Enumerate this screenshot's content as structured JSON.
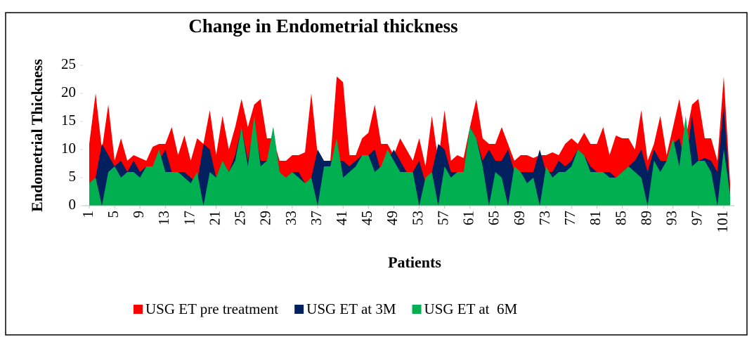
{
  "chart_data": {
    "type": "area",
    "title": "Change in Endometrial thickness",
    "y_label": "Endometrial Thickness",
    "x_label": "Patients",
    "x": [
      1,
      2,
      3,
      4,
      5,
      6,
      7,
      8,
      9,
      10,
      11,
      12,
      13,
      14,
      15,
      16,
      17,
      18,
      19,
      20,
      21,
      22,
      23,
      24,
      25,
      26,
      27,
      28,
      29,
      30,
      31,
      32,
      33,
      34,
      35,
      36,
      37,
      38,
      39,
      40,
      41,
      42,
      43,
      44,
      45,
      46,
      47,
      48,
      49,
      50,
      51,
      52,
      53,
      54,
      55,
      56,
      57,
      58,
      59,
      60,
      61,
      62,
      63,
      64,
      65,
      66,
      67,
      68,
      69,
      70,
      71,
      72,
      73,
      74,
      75,
      76,
      77,
      78,
      79,
      80,
      81,
      82,
      83,
      84,
      85,
      86,
      87,
      88,
      89,
      90,
      91,
      92,
      93,
      94,
      95,
      96,
      97,
      98,
      99,
      100,
      101,
      102
    ],
    "xlim": [
      1,
      102
    ],
    "xticks": [
      1,
      5,
      9,
      13,
      17,
      21,
      25,
      29,
      33,
      37,
      41,
      45,
      49,
      53,
      57,
      61,
      65,
      69,
      73,
      77,
      81,
      85,
      89,
      93,
      97,
      101
    ],
    "ylim": [
      0,
      25
    ],
    "yticks": [
      0,
      5,
      10,
      15,
      20,
      25
    ],
    "series": [
      {
        "name": "USG ET pre treatment",
        "color": "#ff0000",
        "values": [
          11,
          20,
          10,
          18,
          8,
          12,
          8,
          9,
          8.5,
          8,
          10.5,
          11,
          11,
          14,
          9,
          12.5,
          8,
          12,
          11,
          17,
          9,
          16,
          10,
          14,
          19,
          14,
          18,
          19,
          12,
          12,
          8,
          8,
          9,
          9,
          9.5,
          20,
          9,
          8,
          8,
          23,
          22,
          9,
          9,
          12,
          13,
          18,
          11,
          11,
          9,
          12,
          10,
          8,
          12,
          7,
          16,
          8,
          17,
          8,
          9,
          8.5,
          14,
          19,
          12,
          11,
          11,
          14,
          11,
          8,
          9,
          9,
          8.5,
          9,
          9,
          9.5,
          9,
          11,
          12,
          11,
          13,
          11,
          11,
          14,
          9,
          12.5,
          12,
          12,
          10,
          17,
          8,
          11,
          16,
          9,
          14,
          19,
          12,
          18,
          19,
          12,
          12,
          8,
          23,
          4
        ]
      },
      {
        "name": "USG ET at 3M",
        "color": "#002060",
        "values": [
          4,
          5,
          11,
          9,
          7,
          8,
          6,
          8,
          6,
          7,
          7,
          8,
          10,
          6,
          6,
          6,
          5,
          4,
          11,
          10,
          5,
          8,
          6,
          9,
          14,
          8,
          15,
          8,
          8,
          14,
          6,
          5,
          6,
          6,
          4,
          5,
          10,
          8,
          8,
          8,
          8,
          7,
          8,
          9,
          9,
          10,
          6,
          8,
          10,
          8,
          6,
          6,
          8,
          4,
          6,
          11,
          10,
          6,
          6,
          6,
          14,
          12,
          8,
          10,
          8,
          8,
          10,
          6,
          6,
          6,
          6,
          10,
          6,
          6,
          8,
          7,
          8,
          10,
          9,
          7,
          6,
          6,
          6,
          5,
          6,
          7,
          8,
          10,
          6,
          10,
          8,
          8,
          11,
          12,
          7,
          16,
          8,
          8.5,
          8,
          6,
          18,
          2
        ]
      },
      {
        "name": "USG ET at  6M",
        "color": "#00b050",
        "values": [
          4,
          5,
          0,
          6,
          7,
          5,
          6,
          6,
          5,
          7,
          7,
          10,
          6,
          6,
          6,
          5,
          4,
          6,
          0,
          6,
          5,
          8,
          6,
          8,
          14,
          7,
          16,
          7,
          8,
          14,
          6,
          5,
          6,
          5,
          4,
          5,
          0,
          7,
          7,
          12,
          5,
          6,
          7,
          9,
          9,
          6,
          7,
          10,
          8,
          6,
          6,
          6,
          0,
          5,
          6,
          0,
          7,
          5,
          6,
          6,
          14,
          12,
          7,
          0,
          6,
          5,
          0,
          7,
          6,
          4,
          5,
          0,
          7,
          5,
          6,
          6,
          7,
          10,
          9,
          6,
          6,
          6,
          5,
          5,
          6,
          7,
          6,
          5,
          0,
          8,
          6,
          8,
          12,
          7,
          16,
          7,
          8,
          8,
          6,
          0,
          10,
          2
        ]
      }
    ]
  }
}
